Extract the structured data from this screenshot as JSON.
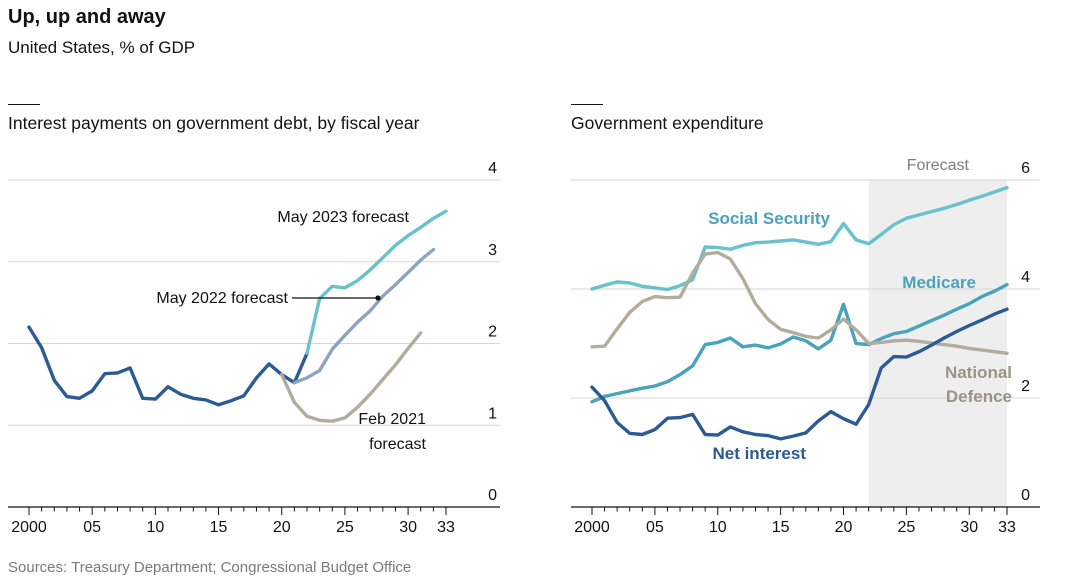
{
  "title": "Up, up and away",
  "subtitle": "United States, % of GDP",
  "source": "Sources: Treasury Department; Congressional Budget Office",
  "colors": {
    "dark_blue": "#2b5a94",
    "teal": "#69c1cb",
    "slate": "#8ea3c3",
    "beige": "#b1ac9c",
    "medicare": "#49a3bb",
    "grid": "#d6d6d6",
    "forecast_band": "#eeeeee",
    "text_grey": "#7f7f7f"
  },
  "chart_data": [
    {
      "type": "line",
      "title": "Interest payments on government debt, by fiscal year",
      "x_tick_labels": [
        "2000",
        "05",
        "10",
        "15",
        "20",
        "25",
        "30",
        "33"
      ],
      "y_tick_labels": [
        "0",
        "1",
        "2",
        "3",
        "4"
      ],
      "xlim": [
        1999,
        2036
      ],
      "ylim": [
        0,
        4
      ],
      "grid": "horizontal",
      "series": [
        {
          "name": "Net interest",
          "color": "#2b5a94",
          "points": [
            [
              2000,
              2.2
            ],
            [
              2001,
              1.95
            ],
            [
              2002,
              1.55
            ],
            [
              2003,
              1.35
            ],
            [
              2004,
              1.33
            ],
            [
              2005,
              1.42
            ],
            [
              2006,
              1.63
            ],
            [
              2007,
              1.64
            ],
            [
              2008,
              1.7
            ],
            [
              2009,
              1.33
            ],
            [
              2010,
              1.32
            ],
            [
              2011,
              1.47
            ],
            [
              2012,
              1.38
            ],
            [
              2013,
              1.33
            ],
            [
              2014,
              1.31
            ],
            [
              2015,
              1.25
            ],
            [
              2016,
              1.3
            ],
            [
              2017,
              1.36
            ],
            [
              2018,
              1.58
            ],
            [
              2019,
              1.75
            ],
            [
              2020,
              1.62
            ],
            [
              2021,
              1.52
            ],
            [
              2022,
              1.88
            ]
          ]
        },
        {
          "name": "May 2023 forecast",
          "color": "#69c1cb",
          "points": [
            [
              2022,
              1.88
            ],
            [
              2023,
              2.55
            ],
            [
              2024,
              2.7
            ],
            [
              2025,
              2.68
            ],
            [
              2026,
              2.77
            ],
            [
              2027,
              2.9
            ],
            [
              2028,
              3.05
            ],
            [
              2029,
              3.2
            ],
            [
              2030,
              3.32
            ],
            [
              2031,
              3.42
            ],
            [
              2032,
              3.53
            ],
            [
              2033,
              3.62
            ]
          ]
        },
        {
          "name": "May 2022 forecast",
          "color": "#8ea3c3",
          "points": [
            [
              2021,
              1.52
            ],
            [
              2022,
              1.58
            ],
            [
              2023,
              1.67
            ],
            [
              2024,
              1.93
            ],
            [
              2025,
              2.1
            ],
            [
              2026,
              2.26
            ],
            [
              2027,
              2.4
            ],
            [
              2028,
              2.58
            ],
            [
              2029,
              2.72
            ],
            [
              2030,
              2.87
            ],
            [
              2031,
              3.02
            ],
            [
              2032,
              3.15
            ]
          ]
        },
        {
          "name": "Feb 2021 forecast",
          "color": "#b1ac9c",
          "points": [
            [
              2020,
              1.62
            ],
            [
              2021,
              1.28
            ],
            [
              2022,
              1.11
            ],
            [
              2023,
              1.06
            ],
            [
              2024,
              1.05
            ],
            [
              2025,
              1.09
            ],
            [
              2026,
              1.22
            ],
            [
              2027,
              1.38
            ],
            [
              2028,
              1.56
            ],
            [
              2029,
              1.74
            ],
            [
              2030,
              1.94
            ],
            [
              2031,
              2.13
            ]
          ]
        }
      ],
      "labels": {
        "may2023": "May 2023 forecast",
        "may2022": "May 2022 forecast",
        "feb2021_line1": "Feb 2021",
        "feb2021_line2": "forecast"
      }
    },
    {
      "type": "line",
      "title": "Government expenditure",
      "x_tick_labels": [
        "2000",
        "05",
        "10",
        "15",
        "20",
        "25",
        "30",
        "33"
      ],
      "y_tick_labels": [
        "0",
        "2",
        "4",
        "6"
      ],
      "xlim": [
        1999,
        2036
      ],
      "ylim": [
        0,
        6
      ],
      "grid": "horizontal",
      "forecast_region": {
        "label": "Forecast",
        "from": 2022,
        "to": 2033
      },
      "series": [
        {
          "name": "Social Security",
          "color": "#69c1cb",
          "points": [
            [
              2000,
              4.0
            ],
            [
              2001,
              4.07
            ],
            [
              2002,
              4.13
            ],
            [
              2003,
              4.11
            ],
            [
              2004,
              4.05
            ],
            [
              2005,
              4.02
            ],
            [
              2006,
              3.99
            ],
            [
              2007,
              4.06
            ],
            [
              2008,
              4.17
            ],
            [
              2009,
              4.77
            ],
            [
              2010,
              4.76
            ],
            [
              2011,
              4.73
            ],
            [
              2012,
              4.8
            ],
            [
              2013,
              4.85
            ],
            [
              2014,
              4.86
            ],
            [
              2015,
              4.88
            ],
            [
              2016,
              4.9
            ],
            [
              2017,
              4.86
            ],
            [
              2018,
              4.82
            ],
            [
              2019,
              4.87
            ],
            [
              2020,
              5.2
            ],
            [
              2021,
              4.9
            ],
            [
              2022,
              4.83
            ],
            [
              2023,
              5.0
            ],
            [
              2024,
              5.18
            ],
            [
              2025,
              5.3
            ],
            [
              2026,
              5.36
            ],
            [
              2027,
              5.42
            ],
            [
              2028,
              5.48
            ],
            [
              2029,
              5.55
            ],
            [
              2030,
              5.63
            ],
            [
              2031,
              5.7
            ],
            [
              2032,
              5.78
            ],
            [
              2033,
              5.86
            ]
          ]
        },
        {
          "name": "Medicare",
          "color": "#49a3bb",
          "points": [
            [
              2000,
              1.93
            ],
            [
              2001,
              2.03
            ],
            [
              2002,
              2.08
            ],
            [
              2003,
              2.13
            ],
            [
              2004,
              2.18
            ],
            [
              2005,
              2.22
            ],
            [
              2006,
              2.3
            ],
            [
              2007,
              2.43
            ],
            [
              2008,
              2.59
            ],
            [
              2009,
              2.98
            ],
            [
              2010,
              3.02
            ],
            [
              2011,
              3.1
            ],
            [
              2012,
              2.94
            ],
            [
              2013,
              2.97
            ],
            [
              2014,
              2.92
            ],
            [
              2015,
              2.99
            ],
            [
              2016,
              3.12
            ],
            [
              2017,
              3.05
            ],
            [
              2018,
              2.9
            ],
            [
              2019,
              3.06
            ],
            [
              2020,
              3.72
            ],
            [
              2021,
              3.0
            ],
            [
              2022,
              2.98
            ],
            [
              2023,
              3.09
            ],
            [
              2024,
              3.18
            ],
            [
              2025,
              3.22
            ],
            [
              2026,
              3.32
            ],
            [
              2027,
              3.42
            ],
            [
              2028,
              3.52
            ],
            [
              2029,
              3.63
            ],
            [
              2030,
              3.73
            ],
            [
              2031,
              3.86
            ],
            [
              2032,
              3.96
            ],
            [
              2033,
              4.08
            ]
          ]
        },
        {
          "name": "National Defence",
          "color": "#b1ac9c",
          "points": [
            [
              2000,
              2.94
            ],
            [
              2001,
              2.95
            ],
            [
              2002,
              3.27
            ],
            [
              2003,
              3.57
            ],
            [
              2004,
              3.77
            ],
            [
              2005,
              3.86
            ],
            [
              2006,
              3.84
            ],
            [
              2007,
              3.85
            ],
            [
              2008,
              4.29
            ],
            [
              2009,
              4.64
            ],
            [
              2010,
              4.67
            ],
            [
              2011,
              4.55
            ],
            [
              2012,
              4.19
            ],
            [
              2013,
              3.73
            ],
            [
              2014,
              3.44
            ],
            [
              2015,
              3.26
            ],
            [
              2016,
              3.2
            ],
            [
              2017,
              3.13
            ],
            [
              2018,
              3.1
            ],
            [
              2019,
              3.25
            ],
            [
              2020,
              3.45
            ],
            [
              2021,
              3.25
            ],
            [
              2022,
              3.0
            ],
            [
              2023,
              3.02
            ],
            [
              2024,
              3.05
            ],
            [
              2025,
              3.06
            ],
            [
              2026,
              3.04
            ],
            [
              2027,
              3.01
            ],
            [
              2028,
              2.98
            ],
            [
              2029,
              2.95
            ],
            [
              2030,
              2.91
            ],
            [
              2031,
              2.88
            ],
            [
              2032,
              2.85
            ],
            [
              2033,
              2.82
            ]
          ]
        },
        {
          "name": "Net interest",
          "color": "#2b5a94",
          "points": [
            [
              2000,
              2.2
            ],
            [
              2001,
              1.95
            ],
            [
              2002,
              1.55
            ],
            [
              2003,
              1.35
            ],
            [
              2004,
              1.33
            ],
            [
              2005,
              1.42
            ],
            [
              2006,
              1.63
            ],
            [
              2007,
              1.64
            ],
            [
              2008,
              1.7
            ],
            [
              2009,
              1.33
            ],
            [
              2010,
              1.32
            ],
            [
              2011,
              1.47
            ],
            [
              2012,
              1.38
            ],
            [
              2013,
              1.33
            ],
            [
              2014,
              1.31
            ],
            [
              2015,
              1.25
            ],
            [
              2016,
              1.3
            ],
            [
              2017,
              1.36
            ],
            [
              2018,
              1.58
            ],
            [
              2019,
              1.75
            ],
            [
              2020,
              1.62
            ],
            [
              2021,
              1.52
            ],
            [
              2022,
              1.88
            ],
            [
              2023,
              2.55
            ],
            [
              2024,
              2.76
            ],
            [
              2025,
              2.75
            ],
            [
              2026,
              2.85
            ],
            [
              2027,
              2.97
            ],
            [
              2028,
              3.1
            ],
            [
              2029,
              3.22
            ],
            [
              2030,
              3.33
            ],
            [
              2031,
              3.43
            ],
            [
              2032,
              3.54
            ],
            [
              2033,
              3.63
            ]
          ]
        }
      ],
      "labels": {
        "social_security": "Social Security",
        "medicare": "Medicare",
        "defence_line1": "National",
        "defence_line2": "Defence",
        "net_interest": "Net interest"
      }
    }
  ]
}
